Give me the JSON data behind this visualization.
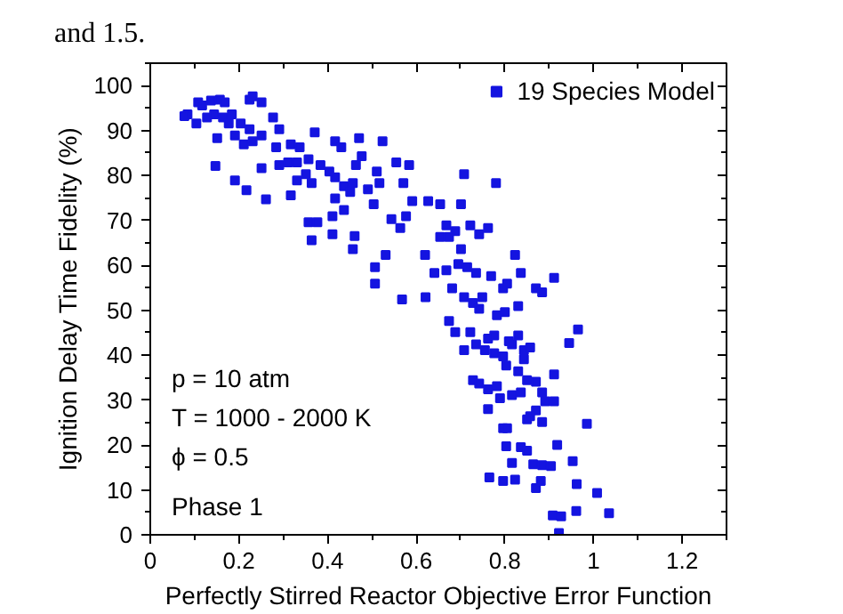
{
  "chart_data": {
    "type": "scatter",
    "xlabel": "Perfectly Stirred Reactor Objective Error Function",
    "ylabel": "Ignition Delay Time Fidelity (%)",
    "annotations": [
      "and 1.5.",
      "p = 10 atm",
      "T = 1000 - 2000 K",
      "ϕ = 0.5",
      "Phase 1"
    ],
    "xlim": [
      0,
      1.3
    ],
    "xticks": [
      0,
      0.2,
      0.4,
      0.6,
      0.8,
      1,
      1.2
    ],
    "ylim": [
      0,
      105
    ],
    "yticks": [
      0,
      10,
      20,
      30,
      40,
      50,
      60,
      70,
      80,
      90,
      100
    ],
    "grid": false,
    "legend": "top right",
    "marker": "square",
    "series": [
      {
        "name": "19 Species Model",
        "color": "#1414e0",
        "x": [
          0.084,
          0.077,
          0.108,
          0.117,
          0.137,
          0.157,
          0.168,
          0.128,
          0.144,
          0.104,
          0.164,
          0.177,
          0.184,
          0.204,
          0.224,
          0.231,
          0.251,
          0.151,
          0.191,
          0.224,
          0.211,
          0.231,
          0.251,
          0.277,
          0.291,
          0.284,
          0.147,
          0.191,
          0.217,
          0.261,
          0.251,
          0.291,
          0.311,
          0.331,
          0.317,
          0.337,
          0.357,
          0.317,
          0.331,
          0.364,
          0.351,
          0.371,
          0.384,
          0.404,
          0.417,
          0.437,
          0.457,
          0.417,
          0.431,
          0.357,
          0.377,
          0.364,
          0.411,
          0.417,
          0.437,
          0.451,
          0.464,
          0.471,
          0.477,
          0.411,
          0.457,
          0.461,
          0.491,
          0.504,
          0.511,
          0.517,
          0.524,
          0.507,
          0.507,
          0.531,
          0.555,
          0.571,
          0.584,
          0.591,
          0.577,
          0.564,
          0.544,
          0.568,
          0.621,
          0.708,
          0.78,
          0.654,
          0.701,
          0.627,
          0.668,
          0.688,
          0.674,
          0.654,
          0.701,
          0.722,
          0.742,
          0.762,
          0.62,
          0.641,
          0.668,
          0.695,
          0.715,
          0.735,
          0.769,
          0.823,
          0.836,
          0.87,
          0.884,
          0.911,
          0.796,
          0.805,
          0.728,
          0.742,
          0.749,
          0.782,
          0.8,
          0.83,
          0.681,
          0.708,
          0.674,
          0.688,
          0.708,
          0.722,
          0.735,
          0.762,
          0.776,
          0.816,
          0.755,
          0.776,
          0.796,
          0.809,
          0.83,
          0.843,
          0.857,
          0.728,
          0.742,
          0.762,
          0.782,
          0.803,
          0.83,
          0.843,
          0.85,
          0.87,
          0.884,
          0.911,
          0.945,
          0.965,
          0.762,
          0.789,
          0.816,
          0.836,
          0.87,
          0.857,
          0.891,
          0.911,
          0.796,
          0.805,
          0.85,
          0.884,
          0.803,
          0.836,
          0.85,
          0.985,
          0.918,
          0.816,
          0.864,
          0.884,
          0.904,
          0.953,
          0.765,
          0.796,
          0.823,
          0.87,
          0.881,
          0.962,
          1.008,
          0.908,
          0.927,
          0.961,
          1.035,
          0.922
        ],
        "values": [
          93.6,
          93.2,
          96.3,
          95.6,
          96.7,
          96.9,
          96.3,
          92.9,
          93.6,
          91.6,
          92.9,
          91.6,
          93.6,
          91.6,
          96.9,
          97.6,
          96.3,
          88.3,
          88.9,
          90.3,
          86.9,
          87.6,
          88.9,
          92.9,
          90.3,
          86.3,
          82.1,
          78.9,
          76.7,
          74.7,
          81.6,
          82.3,
          82.9,
          82.9,
          86.9,
          86.3,
          83.6,
          75.6,
          78.9,
          78.3,
          80.3,
          89.6,
          82.3,
          80.9,
          79.6,
          77.6,
          78.3,
          87.6,
          86.3,
          69.6,
          69.6,
          65.6,
          66.9,
          74.9,
          72.3,
          76.3,
          82.3,
          88.3,
          84.3,
          70.9,
          63.6,
          66.5,
          76.9,
          73.6,
          80.9,
          78.3,
          87.6,
          59.6,
          55.9,
          62.3,
          82.9,
          78.3,
          82.3,
          74.3,
          70.9,
          68.3,
          70.3,
          52.4,
          52.9,
          80.3,
          78.3,
          73.6,
          73.6,
          74.3,
          68.9,
          67.6,
          66.3,
          66.3,
          63.6,
          68.9,
          66.9,
          68.3,
          62.3,
          58.3,
          58.9,
          60.3,
          59.6,
          58.3,
          57.6,
          62.3,
          58.3,
          54.9,
          54.0,
          57.2,
          54.9,
          55.9,
          51.6,
          50.3,
          52.9,
          48.9,
          49.6,
          50.9,
          54.9,
          52.9,
          47.6,
          45.1,
          41.1,
          45.1,
          42.4,
          43.7,
          44.4,
          42.4,
          41.1,
          40.4,
          39.7,
          43.1,
          44.4,
          41.1,
          41.7,
          34.4,
          33.7,
          32.4,
          33.1,
          37.7,
          36.4,
          39.1,
          34.4,
          34.1,
          31.7,
          35.7,
          42.7,
          45.7,
          28.0,
          30.4,
          31.1,
          31.7,
          27.7,
          26.4,
          29.7,
          29.7,
          23.7,
          23.7,
          25.7,
          25.1,
          19.7,
          19.5,
          18.7,
          24.7,
          20.0,
          16.0,
          15.7,
          15.5,
          15.3,
          16.4,
          12.8,
          12.0,
          12.3,
          10.4,
          12.0,
          11.3,
          9.3,
          4.3,
          4.1,
          5.3,
          4.8,
          0.4
        ]
      }
    ]
  }
}
